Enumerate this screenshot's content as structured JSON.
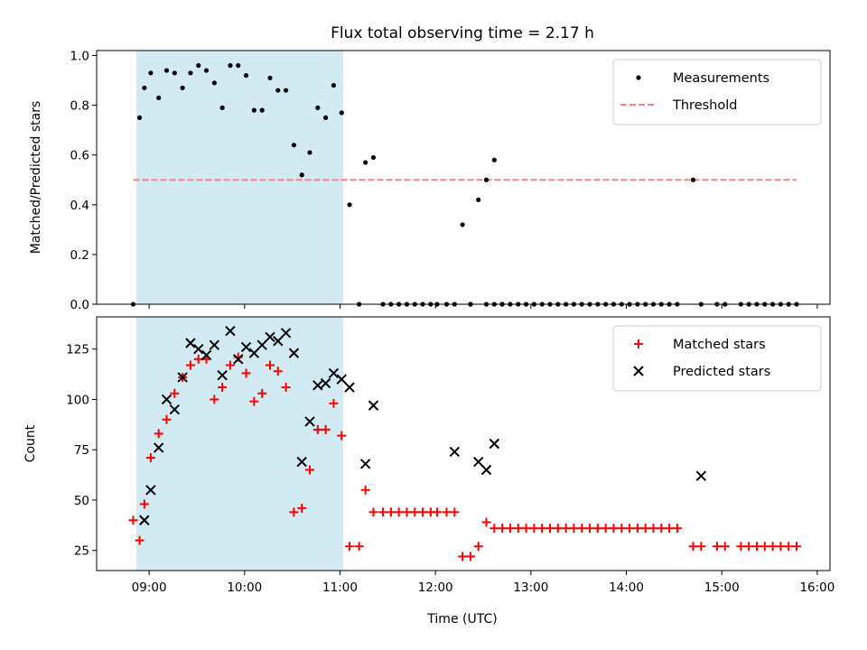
{
  "chart_data": {
    "title": "Flux total observing time = 2.17 h",
    "xlabel": "Time (UTC)",
    "x_ticks": [
      "09:00",
      "10:00",
      "11:00",
      "12:00",
      "13:00",
      "14:00",
      "15:00",
      "16:00"
    ],
    "highlight_span": {
      "start": "08:52",
      "end": "11:02",
      "color": "#add8e6"
    },
    "panels": [
      {
        "type": "scatter",
        "ylabel": "Matched/Predicted stars",
        "ylim": [
          0,
          1.02
        ],
        "y_ticks": [
          "0.0",
          "0.2",
          "0.4",
          "0.6",
          "0.8",
          "1.0"
        ],
        "legend_position": "top-right",
        "threshold": {
          "name": "Threshold",
          "value": 0.5,
          "x_start": "08:50",
          "x_end": "15:47",
          "color": "#ff8080"
        },
        "series": [
          {
            "name": "Measurements",
            "color": "#000000",
            "marker": "dot",
            "x": [
              "08:50",
              "08:54",
              "08:57",
              "09:01",
              "09:06",
              "09:11",
              "09:16",
              "09:21",
              "09:26",
              "09:31",
              "09:36",
              "09:41",
              "09:46",
              "09:51",
              "09:56",
              "10:01",
              "10:06",
              "10:11",
              "10:16",
              "10:21",
              "10:26",
              "10:31",
              "10:36",
              "10:41",
              "10:46",
              "10:51",
              "10:56",
              "11:01",
              "11:06",
              "11:12",
              "11:16",
              "11:21",
              "11:27",
              "11:32",
              "11:37",
              "11:42",
              "11:47",
              "11:52",
              "11:57",
              "12:01",
              "12:07",
              "12:12",
              "12:17",
              "12:22",
              "12:27",
              "12:32",
              "12:37",
              "12:42",
              "12:47",
              "12:52",
              "12:57",
              "13:02",
              "13:07",
              "13:12",
              "13:17",
              "13:22",
              "13:27",
              "13:32",
              "13:37",
              "13:42",
              "13:47",
              "13:52",
              "13:57",
              "14:02",
              "14:07",
              "14:12",
              "14:17",
              "14:22",
              "14:27",
              "14:32",
              "14:42",
              "14:47",
              "14:57",
              "15:02",
              "15:12",
              "15:17",
              "15:22",
              "15:27",
              "15:32",
              "15:37",
              "15:42",
              "15:47",
              "12:22",
              "12:32",
              "12:37",
              "12:42"
            ],
            "y": [
              0.0,
              0.75,
              0.87,
              0.93,
              0.83,
              0.94,
              0.93,
              0.87,
              0.93,
              0.96,
              0.94,
              0.89,
              0.79,
              0.96,
              0.96,
              0.92,
              0.78,
              0.78,
              0.91,
              0.86,
              0.86,
              0.64,
              0.52,
              0.61,
              0.79,
              0.75,
              0.88,
              0.77,
              0.4,
              0.0,
              0.57,
              0.59,
              0.0,
              0.0,
              0.0,
              0.0,
              0.0,
              0.0,
              0.0,
              0.0,
              0.0,
              0.0,
              0.32,
              0.0,
              0.42,
              0.5,
              0.58,
              0.0,
              0.0,
              0.0,
              0.0,
              0.0,
              0.0,
              0.0,
              0.0,
              0.0,
              0.0,
              0.0,
              0.0,
              0.0,
              0.0,
              0.0,
              0.0,
              0.0,
              0.0,
              0.0,
              0.0,
              0.0,
              0.0,
              0.0,
              0.5,
              0.0,
              0.0,
              0.0,
              0.0,
              0.0,
              0.0,
              0.0,
              0.0,
              0.0,
              0.0,
              0.0,
              0.0,
              0.0,
              0.0,
              0.0
            ]
          }
        ]
      },
      {
        "type": "scatter",
        "ylabel": "Count",
        "ylim": [
          15,
          141
        ],
        "y_ticks": [
          "25",
          "50",
          "75",
          "100",
          "125"
        ],
        "legend_position": "top-right",
        "series": [
          {
            "name": "Matched stars",
            "color": "#ff0000",
            "marker": "plus",
            "x": [
              "08:50",
              "08:54",
              "08:57",
              "09:01",
              "09:06",
              "09:11",
              "09:16",
              "09:21",
              "09:26",
              "09:31",
              "09:36",
              "09:41",
              "09:46",
              "09:51",
              "09:56",
              "10:01",
              "10:06",
              "10:11",
              "10:16",
              "10:21",
              "10:26",
              "10:31",
              "10:36",
              "10:41",
              "10:46",
              "10:51",
              "10:56",
              "11:01",
              "11:06",
              "11:12",
              "11:16",
              "11:21",
              "11:27",
              "11:32",
              "11:37",
              "11:42",
              "11:47",
              "11:52",
              "11:57",
              "12:01",
              "12:07",
              "12:12",
              "12:17",
              "12:22",
              "12:27",
              "12:32",
              "12:37",
              "12:42",
              "12:47",
              "12:52",
              "12:57",
              "13:02",
              "13:07",
              "13:12",
              "13:17",
              "13:22",
              "13:27",
              "13:32",
              "13:37",
              "13:42",
              "13:47",
              "13:52",
              "13:57",
              "14:02",
              "14:07",
              "14:12",
              "14:17",
              "14:22",
              "14:27",
              "14:32",
              "14:42",
              "14:47",
              "14:57",
              "15:02",
              "15:12",
              "15:17",
              "15:22",
              "15:27",
              "15:32",
              "15:37",
              "15:42",
              "15:47"
            ],
            "y": [
              40,
              30,
              48,
              71,
              83,
              90,
              103,
              111,
              117,
              120,
              120,
              100,
              106,
              117,
              121,
              113,
              99,
              103,
              117,
              114,
              106,
              44,
              46,
              65,
              85,
              85,
              98,
              82,
              27,
              27,
              55,
              44,
              44,
              44,
              44,
              44,
              44,
              44,
              44,
              44,
              44,
              44,
              22,
              22,
              27,
              39,
              36,
              36,
              36,
              36,
              36,
              36,
              36,
              36,
              36,
              36,
              36,
              36,
              36,
              36,
              36,
              36,
              36,
              36,
              36,
              36,
              36,
              36,
              36,
              36,
              27,
              27,
              27,
              27,
              27,
              27,
              27,
              27,
              27,
              27,
              27,
              27
            ]
          },
          {
            "name": "Predicted stars",
            "color": "#000000",
            "marker": "x",
            "x": [
              "08:57",
              "09:01",
              "09:06",
              "09:11",
              "09:16",
              "09:21",
              "09:26",
              "09:31",
              "09:36",
              "09:41",
              "09:46",
              "09:51",
              "09:56",
              "10:01",
              "10:06",
              "10:11",
              "10:16",
              "10:21",
              "10:26",
              "10:31",
              "10:36",
              "10:41",
              "10:46",
              "10:51",
              "10:56",
              "11:01",
              "11:06",
              "11:16",
              "11:21",
              "12:12",
              "12:27",
              "12:32",
              "12:37",
              "14:47"
            ],
            "y": [
              40,
              55,
              76,
              100,
              95,
              111,
              128,
              125,
              122,
              127,
              112,
              134,
              120,
              126,
              123,
              127,
              131,
              129,
              133,
              123,
              69,
              89,
              107,
              108,
              113,
              110,
              106,
              68,
              97,
              74,
              69,
              65,
              78,
              62
            ]
          }
        ]
      }
    ]
  }
}
